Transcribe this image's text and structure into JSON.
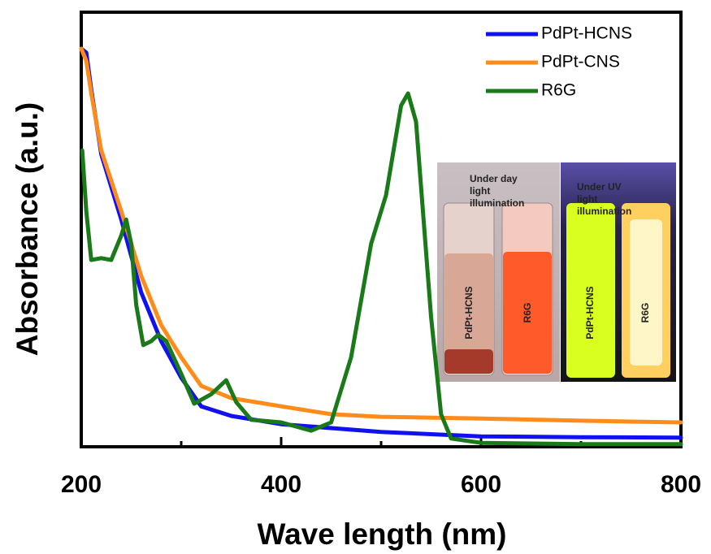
{
  "chart_data": {
    "type": "line",
    "xlabel": "Wave length (nm)",
    "ylabel": "Absorbance (a.u.)",
    "xlim": [
      200,
      800
    ],
    "ylim": [
      0,
      1
    ],
    "xticks": [
      200,
      400,
      600,
      800
    ],
    "xminorticks": [
      300,
      500,
      700
    ],
    "legend": "upper right",
    "series": [
      {
        "name": "PdPt-HCNS",
        "color": "#1010f0",
        "x": [
          200,
          205,
          210,
          220,
          240,
          260,
          280,
          300,
          320,
          350,
          400,
          500,
          600,
          700,
          800
        ],
        "values": [
          0.916,
          0.907,
          0.822,
          0.673,
          0.523,
          0.355,
          0.243,
          0.159,
          0.093,
          0.071,
          0.052,
          0.034,
          0.024,
          0.022,
          0.021
        ]
      },
      {
        "name": "PdPt-CNS",
        "color": "#ff8c1a",
        "x": [
          200,
          205,
          210,
          220,
          240,
          260,
          280,
          300,
          320,
          350,
          400,
          450,
          500,
          600,
          700,
          800
        ],
        "values": [
          0.916,
          0.888,
          0.813,
          0.682,
          0.542,
          0.393,
          0.28,
          0.206,
          0.14,
          0.112,
          0.093,
          0.075,
          0.069,
          0.065,
          0.06,
          0.056
        ]
      },
      {
        "name": "R6G",
        "color": "#1a7a1a",
        "x": [
          201,
          205,
          210,
          220,
          230,
          240,
          245,
          250,
          255,
          262,
          270,
          277,
          285,
          300,
          313,
          330,
          345,
          355,
          370,
          400,
          430,
          450,
          470,
          490,
          505,
          520,
          527,
          535,
          550,
          560,
          570,
          600,
          700,
          800
        ],
        "values": [
          0.682,
          0.542,
          0.43,
          0.434,
          0.43,
          0.486,
          0.523,
          0.467,
          0.327,
          0.234,
          0.243,
          0.258,
          0.243,
          0.168,
          0.099,
          0.121,
          0.153,
          0.103,
          0.062,
          0.056,
          0.037,
          0.056,
          0.206,
          0.467,
          0.579,
          0.785,
          0.813,
          0.748,
          0.299,
          0.075,
          0.019,
          0.009,
          0.006,
          0.006
        ]
      }
    ]
  },
  "inset": {
    "day_title": "Under day light illumination",
    "uv_title": "Under UV light illumination",
    "vials": [
      "PdPt-HCNS",
      "R6G",
      "PdPt-HCNS",
      "R6G"
    ]
  }
}
